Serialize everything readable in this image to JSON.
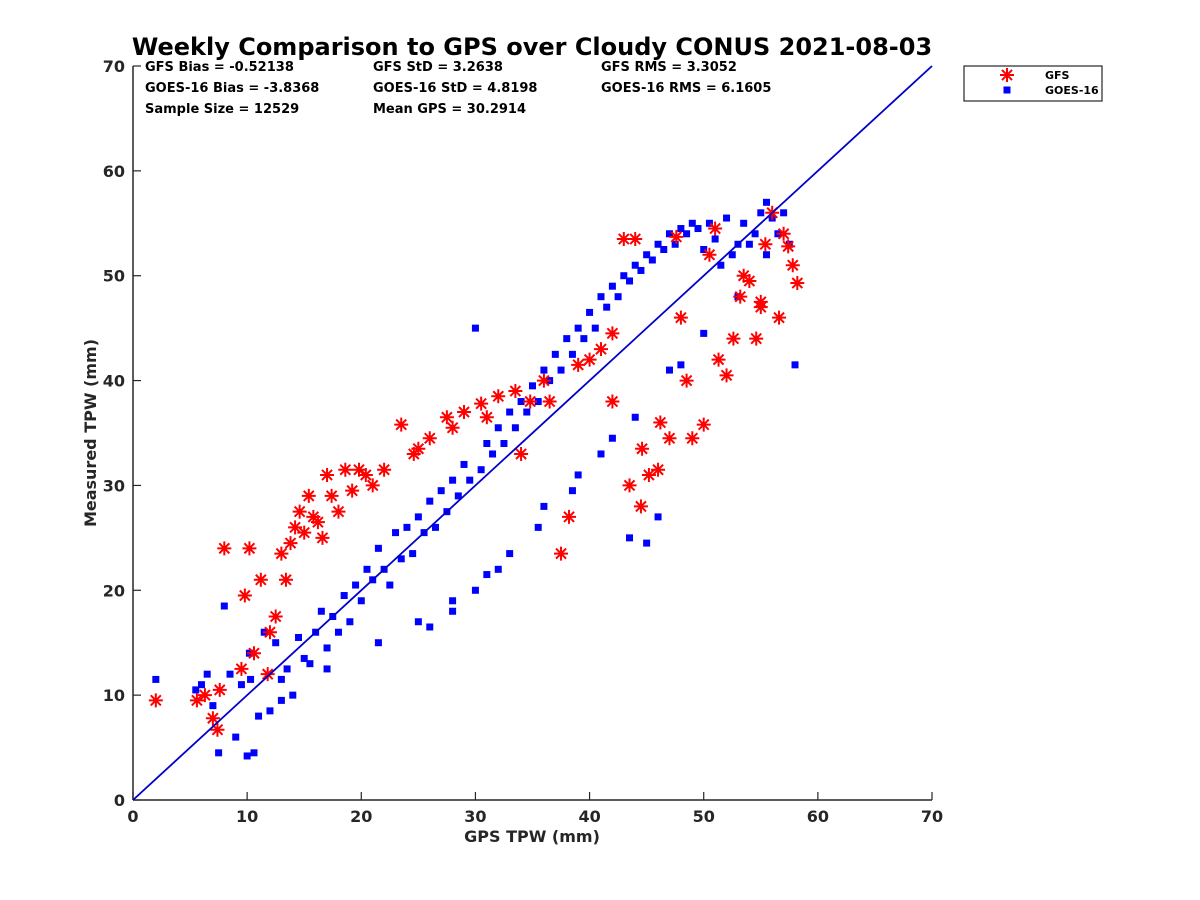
{
  "chart_data": {
    "type": "scatter",
    "title": "Weekly Comparison to GPS over Cloudy CONUS 2021-08-03",
    "xlabel": "GPS TPW (mm)",
    "ylabel": "Measured TPW (mm)",
    "xlim": [
      0,
      70
    ],
    "ylim": [
      0,
      70
    ],
    "xticks": [
      "0",
      "10",
      "20",
      "30",
      "40",
      "50",
      "60",
      "70"
    ],
    "yticks": [
      "0",
      "10",
      "20",
      "30",
      "40",
      "50",
      "60",
      "70"
    ],
    "grid": false,
    "legend_position": "top-right outside plot",
    "stats": [
      "GFS Bias = -0.52138",
      "GFS StD = 3.2638",
      "GFS RMS = 3.3052",
      "GOES-16 Bias = -3.8368",
      "GOES-16 StD = 4.8198",
      "GOES-16 RMS = 6.1605",
      "Sample Size = 12529",
      "Mean GPS = 30.2914"
    ],
    "reference_line": {
      "x": [
        0,
        70
      ],
      "y": [
        0,
        70
      ],
      "color": "#0000cc"
    },
    "series": [
      {
        "name": "GFS",
        "marker": "asterisk",
        "color": "#ff0000",
        "x": [
          2.0,
          5.6,
          6.3,
          7.0,
          7.4,
          7.6,
          8.0,
          9.5,
          9.8,
          10.2,
          10.6,
          11.2,
          11.8,
          12.0,
          12.5,
          13.0,
          13.4,
          13.8,
          14.2,
          14.6,
          15.0,
          15.4,
          15.8,
          16.2,
          16.6,
          17.0,
          17.4,
          18.0,
          18.6,
          19.2,
          19.8,
          20.4,
          21.0,
          22.0,
          23.5,
          24.6,
          26.0,
          27.5,
          29.0,
          30.5,
          32.0,
          33.5,
          34.8,
          36.0,
          37.5,
          38.2,
          39.0,
          40.0,
          41.0,
          42.0,
          43.0,
          43.5,
          44.0,
          44.5,
          45.2,
          46.0,
          47.0,
          47.6,
          48.5,
          49.0,
          50.0,
          51.0,
          51.3,
          52.0,
          52.6,
          53.2,
          54.0,
          54.6,
          55.0,
          55.4,
          56.0,
          56.6,
          57.0,
          57.4,
          57.8,
          58.2,
          42.0,
          44.6,
          46.2,
          48.0,
          50.5,
          53.5,
          55.0,
          34.0,
          36.5,
          31.0,
          28.0,
          25.0
        ],
        "y": [
          9.5,
          9.5,
          10.0,
          7.8,
          6.7,
          10.5,
          24.0,
          12.5,
          19.5,
          24.0,
          14.0,
          21.0,
          12.0,
          16.0,
          17.5,
          23.5,
          21.0,
          24.5,
          26.0,
          27.5,
          25.5,
          29.0,
          27.0,
          26.5,
          25.0,
          31.0,
          29.0,
          27.5,
          31.5,
          29.5,
          31.5,
          31.0,
          30.0,
          31.5,
          35.8,
          33.0,
          34.5,
          36.5,
          37.0,
          37.8,
          38.5,
          39.0,
          38.0,
          40.0,
          23.5,
          27.0,
          41.5,
          42.0,
          43.0,
          44.5,
          53.5,
          30.0,
          53.5,
          28.0,
          31.0,
          31.5,
          34.5,
          53.7,
          40.0,
          34.5,
          35.8,
          54.5,
          42.0,
          40.5,
          44.0,
          48.0,
          49.5,
          44.0,
          47.5,
          53.0,
          56.0,
          46.0,
          54.0,
          52.8,
          51.0,
          49.3,
          38.0,
          33.5,
          36.0,
          46.0,
          52.0,
          50.0,
          47.0,
          33.0,
          38.0,
          36.5,
          35.5,
          33.5
        ]
      },
      {
        "name": "GOES-16",
        "marker": "square",
        "color": "#0000ff",
        "x": [
          2.0,
          5.5,
          6.0,
          6.5,
          7.0,
          7.5,
          8.0,
          8.5,
          9.0,
          9.5,
          10.0,
          10.3,
          10.6,
          11.0,
          11.5,
          12.0,
          12.5,
          13.0,
          13.5,
          14.0,
          14.5,
          15.0,
          15.5,
          16.0,
          16.5,
          17.0,
          17.5,
          18.0,
          18.5,
          19.0,
          19.5,
          20.0,
          20.5,
          21.0,
          21.5,
          22.0,
          22.5,
          23.0,
          23.5,
          24.0,
          24.5,
          25.0,
          25.5,
          26.0,
          26.5,
          27.0,
          27.5,
          28.0,
          28.5,
          29.0,
          29.5,
          30.0,
          30.5,
          31.0,
          31.5,
          32.0,
          32.5,
          33.0,
          33.5,
          34.0,
          34.5,
          35.0,
          35.5,
          36.0,
          36.5,
          37.0,
          37.5,
          38.0,
          38.5,
          39.0,
          39.5,
          40.0,
          40.5,
          41.0,
          41.5,
          42.0,
          42.5,
          43.0,
          43.5,
          44.0,
          44.5,
          45.0,
          45.5,
          46.0,
          46.5,
          47.0,
          47.5,
          48.0,
          48.5,
          49.0,
          49.5,
          50.0,
          50.5,
          51.0,
          51.5,
          52.0,
          52.5,
          53.0,
          53.5,
          54.0,
          54.5,
          55.0,
          55.5,
          56.0,
          56.5,
          57.0,
          57.5,
          58.0,
          10.2,
          13.0,
          17.0,
          21.5,
          25.0,
          28.0,
          31.0,
          33.0,
          35.5,
          38.5,
          41.0,
          44.0,
          47.0,
          50.0,
          53.0,
          55.5,
          43.5,
          45.0,
          46.0,
          30.0,
          32.0,
          26.0,
          28.0,
          36.0,
          39.0,
          42.0,
          48.0
        ],
        "y": [
          11.5,
          10.5,
          11.0,
          12.0,
          9.0,
          4.5,
          18.5,
          12.0,
          6.0,
          11.0,
          4.2,
          11.5,
          4.5,
          8.0,
          16.0,
          8.5,
          15.0,
          11.5,
          12.5,
          10.0,
          15.5,
          13.5,
          13.0,
          16.0,
          18.0,
          14.5,
          17.5,
          16.0,
          19.5,
          17.0,
          20.5,
          19.0,
          22.0,
          21.0,
          24.0,
          22.0,
          20.5,
          25.5,
          23.0,
          26.0,
          23.5,
          27.0,
          25.5,
          28.5,
          26.0,
          29.5,
          27.5,
          30.5,
          29.0,
          32.0,
          30.5,
          45.0,
          31.5,
          34.0,
          33.0,
          35.5,
          34.0,
          37.0,
          35.5,
          38.0,
          37.0,
          39.5,
          38.0,
          41.0,
          40.0,
          42.5,
          41.0,
          44.0,
          42.5,
          45.0,
          44.0,
          46.5,
          45.0,
          48.0,
          47.0,
          49.0,
          48.0,
          50.0,
          49.5,
          51.0,
          50.5,
          52.0,
          51.5,
          53.0,
          52.5,
          54.0,
          53.0,
          54.5,
          54.0,
          55.0,
          54.5,
          52.5,
          55.0,
          53.5,
          51.0,
          55.5,
          52.0,
          53.0,
          55.0,
          53.0,
          54.0,
          56.0,
          57.0,
          55.5,
          54.0,
          56.0,
          53.0,
          41.5,
          14.0,
          9.5,
          12.5,
          15.0,
          17.0,
          19.0,
          21.5,
          23.5,
          26.0,
          29.5,
          33.0,
          36.5,
          41.0,
          44.5,
          48.0,
          52.0,
          25.0,
          24.5,
          27.0,
          20.0,
          22.0,
          16.5,
          18.0,
          28.0,
          31.0,
          34.5,
          41.5
        ]
      }
    ]
  }
}
